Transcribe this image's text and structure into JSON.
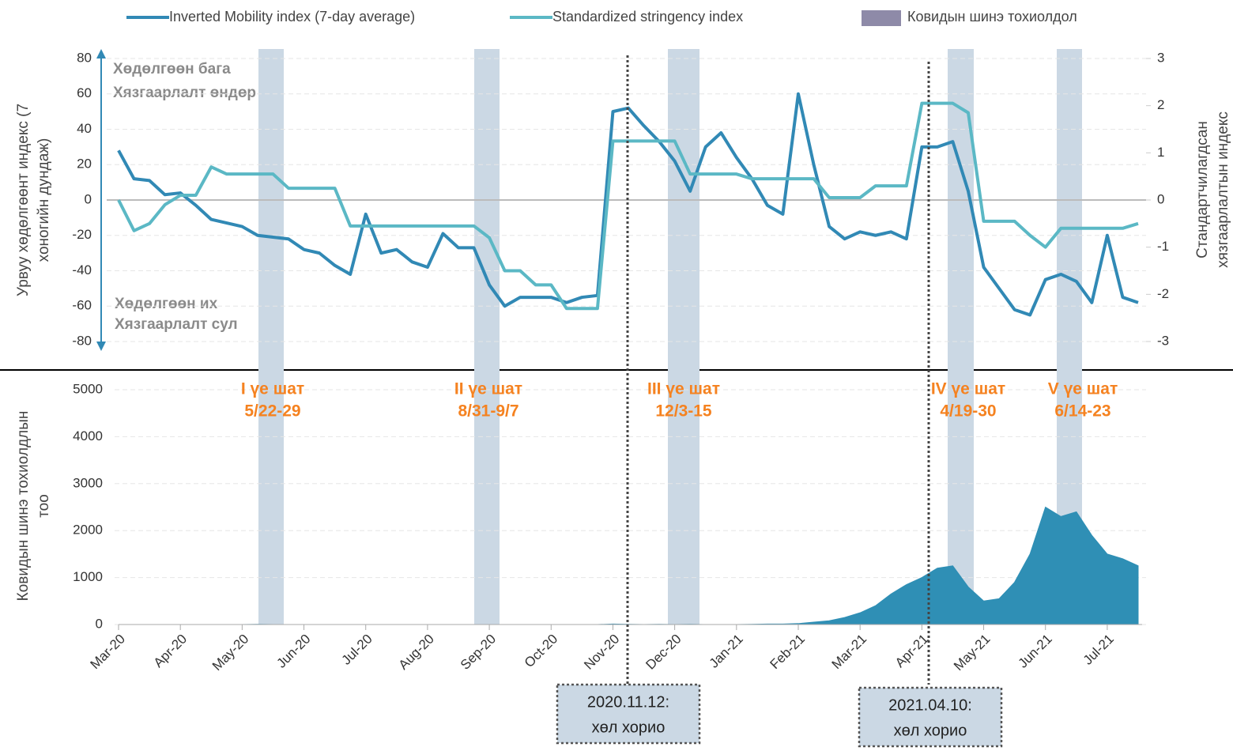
{
  "chart_data": [
    {
      "type": "line",
      "ylabel": [
        "Урвуу хөдөлгөөнт индекс (7",
        "хоногийн дундаж)"
      ],
      "y2label": [
        "Стандартчилагдсан",
        "хязгаарлалтын индекс"
      ],
      "ylim": [
        -80,
        80
      ],
      "yticks": [
        -80,
        -60,
        -40,
        -20,
        0,
        20,
        40,
        60,
        80
      ],
      "y2lim": [
        -3,
        3
      ],
      "y2ticks": [
        -3,
        -2,
        -1,
        0,
        1,
        2,
        3
      ],
      "grid": true,
      "annotations": {
        "top": [
          "Хөдөлгөөн бага",
          "Хязгаарлалт өндөр"
        ],
        "bottom": [
          "Хөдөлгөөн их",
          "Хязгаарлалт сул"
        ]
      },
      "events": [
        {
          "date": "2020.11.12:",
          "label": "хөл хорио"
        },
        {
          "date": "2021.04.10:",
          "label": "хөл хорио"
        }
      ],
      "series": [
        {
          "name": "Inverted Mobility index (7-day average)",
          "color": "#3189b5",
          "values": [
            28,
            12,
            11,
            3,
            4,
            -3,
            -11,
            -13,
            -15,
            -20,
            -21,
            -22,
            -28,
            -30,
            -37,
            -42,
            -8,
            -30,
            -28,
            -35,
            -38,
            -19,
            -27,
            -27,
            -48,
            -60,
            -55,
            -55,
            -55,
            -58,
            -55,
            -54,
            50,
            52,
            42,
            33,
            22,
            5,
            30,
            38,
            24,
            12,
            -3,
            -8,
            60,
            20,
            -15,
            -22,
            -18,
            -20,
            -18,
            -22,
            30,
            30,
            33,
            5,
            -38,
            -50,
            -62,
            -65,
            -45,
            -42,
            -46,
            -58,
            -20,
            -55,
            -58
          ]
        },
        {
          "name": "Standardized stringency index",
          "color": "#5bb8c5",
          "axis": "y2",
          "values": [
            0,
            -0.65,
            -0.5,
            -0.1,
            0.1,
            0.1,
            0.7,
            0.55,
            0.55,
            0.55,
            0.55,
            0.25,
            0.25,
            0.25,
            0.25,
            -0.55,
            -0.55,
            -0.55,
            -0.55,
            -0.55,
            -0.55,
            -0.55,
            -0.55,
            -0.55,
            -0.8,
            -1.5,
            -1.5,
            -1.8,
            -1.8,
            -2.3,
            -2.3,
            -2.3,
            1.25,
            1.25,
            1.25,
            1.25,
            1.25,
            0.55,
            0.55,
            0.55,
            0.55,
            0.45,
            0.45,
            0.45,
            0.45,
            0.45,
            0.05,
            0.05,
            0.05,
            0.3,
            0.3,
            0.3,
            2.05,
            2.05,
            2.05,
            1.85,
            -0.45,
            -0.45,
            -0.45,
            -0.75,
            -1,
            -0.6,
            -0.6,
            -0.6,
            -0.6,
            -0.6,
            -0.5
          ]
        }
      ]
    },
    {
      "type": "area",
      "ylabel": [
        "Ковидын шинэ тохиолдлын",
        "тоо"
      ],
      "ylim": [
        0,
        5000
      ],
      "yticks": [
        0,
        1000,
        2000,
        3000,
        4000,
        5000
      ],
      "grid": true,
      "phases": [
        {
          "name": "I үе шат",
          "dates": "5/22-29"
        },
        {
          "name": "II үе шат",
          "dates": "8/31-9/7"
        },
        {
          "name": "III үе шат",
          "dates": "12/3-15"
        },
        {
          "name": "IV үе шат",
          "dates": "4/19-30"
        },
        {
          "name": "V үе шат",
          "dates": "6/14-23"
        }
      ],
      "categories": [
        "Mar-20",
        null,
        null,
        null,
        "Apr-20",
        null,
        null,
        null,
        "May-20",
        null,
        null,
        null,
        "Jun-20",
        null,
        null,
        null,
        "Jul-20",
        null,
        null,
        null,
        "Aug-20",
        null,
        null,
        null,
        "Sep-20",
        null,
        null,
        null,
        "Oct-20",
        null,
        null,
        null,
        "Nov-20",
        null,
        null,
        null,
        "Dec-20",
        null,
        null,
        null,
        "Jan-21",
        null,
        null,
        null,
        "Feb-21",
        null,
        null,
        null,
        "Mar-21",
        null,
        null,
        null,
        "Apr-21",
        null,
        null,
        null,
        "May-21",
        null,
        null,
        null,
        "Jun-21",
        null,
        null,
        null,
        "Jul-21",
        null,
        null
      ],
      "series": [
        {
          "name": "Ковидын шинэ тохиолдол",
          "color": "#2f8fb5",
          "legend_color": "#8e8aa8",
          "values": [
            0,
            0,
            0,
            0,
            0,
            0,
            0,
            0,
            0,
            5,
            0,
            0,
            0,
            0,
            0,
            0,
            0,
            0,
            0,
            0,
            0,
            0,
            0,
            0,
            0,
            0,
            0,
            0,
            0,
            0,
            0,
            0,
            10,
            5,
            0,
            5,
            0,
            5,
            0,
            0,
            0,
            5,
            10,
            10,
            20,
            50,
            80,
            150,
            250,
            400,
            650,
            850,
            1000,
            1200,
            1250,
            800,
            500,
            550,
            900,
            1500,
            2500,
            2300,
            2400,
            1900,
            1500,
            1400,
            1250
          ]
        }
      ]
    }
  ]
}
